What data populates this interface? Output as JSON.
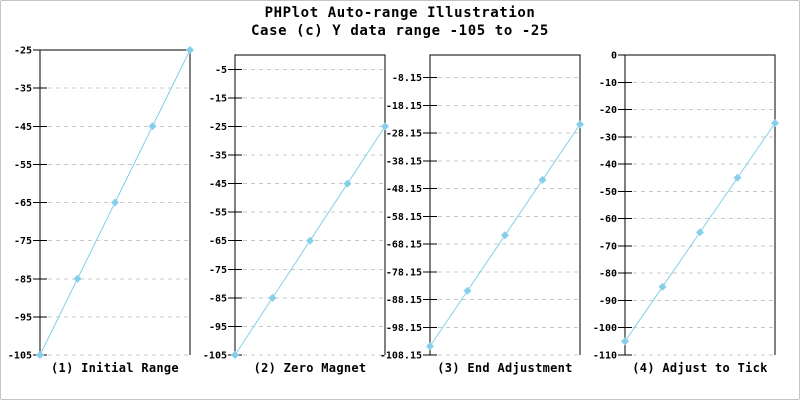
{
  "header": {
    "title": "PHPlot Auto-range Illustration",
    "subtitle": "Case (c) Y data range -105 to -25"
  },
  "colors": {
    "line": "#87CEEB",
    "marker": "#87CEEB",
    "grid": "#C9C9C9",
    "axis": "#000000",
    "frame": "#C4C4C4",
    "text": "#000000",
    "background": "#FFFFFF"
  },
  "chart_data": [
    {
      "type": "line",
      "title": "(1) Initial Range",
      "values": [
        -105,
        -85,
        -65,
        -45,
        -25
      ],
      "ylim": [
        -105,
        -25
      ],
      "yticks": [
        -25,
        -35,
        -45,
        -55,
        -65,
        -75,
        -85,
        -95,
        -105
      ],
      "ytick_labels": [
        "-25",
        "-35",
        "-45",
        "-55",
        "-65",
        "-75",
        "-85",
        "-95",
        "-105"
      ],
      "marker": "diamond",
      "grid": "horizontal-dashed",
      "legend": null
    },
    {
      "type": "line",
      "title": "(2) Zero Magnet",
      "values": [
        -105,
        -85,
        -65,
        -45,
        -25
      ],
      "ylim": [
        -105,
        0
      ],
      "yticks": [
        -5,
        -15,
        -25,
        -35,
        -45,
        -55,
        -65,
        -75,
        -85,
        -95,
        -105
      ],
      "ytick_labels": [
        "-5",
        "-15",
        "-25",
        "-35",
        "-45",
        "-55",
        "-65",
        "-75",
        "-85",
        "-95",
        "-105"
      ],
      "marker": "diamond",
      "grid": "horizontal-dashed",
      "legend": null
    },
    {
      "type": "line",
      "title": "(3) End Adjustment",
      "values": [
        -105,
        -85,
        -65,
        -45,
        -25
      ],
      "ylim": [
        -108.15,
        0
      ],
      "yticks": [
        -8.15,
        -18.15,
        -28.15,
        -38.15,
        -48.15,
        -58.15,
        -68.15,
        -78.15,
        -88.15,
        -98.15,
        -108.15
      ],
      "ytick_labels": [
        "-8.15",
        "-18.15",
        "-28.15",
        "-38.15",
        "-48.15",
        "-58.15",
        "-68.15",
        "-78.15",
        "-88.15",
        "-98.15",
        "-108.15"
      ],
      "marker": "diamond",
      "grid": "horizontal-dashed",
      "legend": null
    },
    {
      "type": "line",
      "title": "(4) Adjust to Tick",
      "values": [
        -105,
        -85,
        -65,
        -45,
        -25
      ],
      "ylim": [
        -110,
        0
      ],
      "yticks": [
        0,
        -10,
        -20,
        -30,
        -40,
        -50,
        -60,
        -70,
        -80,
        -90,
        -100,
        -110
      ],
      "ytick_labels": [
        "0",
        "-10",
        "-20",
        "-30",
        "-40",
        "-50",
        "-60",
        "-70",
        "-80",
        "-90",
        "-100",
        "-110"
      ],
      "marker": "diamond",
      "grid": "horizontal-dashed",
      "legend": null
    }
  ]
}
